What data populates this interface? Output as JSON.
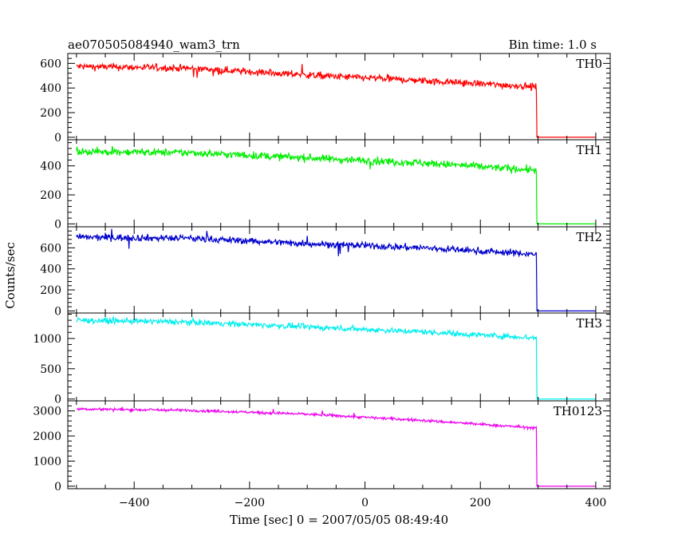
{
  "header": {
    "title": "ae070505084940_wam3_trn",
    "bin_time": "Bin time: 1.0 s"
  },
  "chart_data": {
    "type": "line",
    "xlabel": "Time [sec] 0 = 2007/05/05 08:49:40",
    "ylabel": "Counts/sec",
    "xlim": [
      -515,
      425
    ],
    "x_ticks": [
      -400,
      -200,
      0,
      200,
      400
    ],
    "x_tick_labels": [
      "−400",
      "−200",
      "0",
      "200",
      "400"
    ],
    "x_data_range": [
      -500,
      400
    ],
    "drop_time": 297,
    "bin_time_s": 1.0,
    "grid": false,
    "panels": [
      {
        "name": "TH0",
        "color": "#ff0000",
        "ylim": [
          -20,
          680
        ],
        "y_ticks": [
          0,
          200,
          400,
          600
        ],
        "y_tick_labels": [
          "0",
          "200",
          "400",
          "600"
        ],
        "trend": [
          [
            -500,
            575
          ],
          [
            -300,
            560
          ],
          [
            -100,
            505
          ],
          [
            100,
            460
          ],
          [
            296,
            410
          ]
        ],
        "noise": 28,
        "after_drop": 0
      },
      {
        "name": "TH1",
        "color": "#00ee00",
        "ylim": [
          -20,
          580
        ],
        "y_ticks": [
          0,
          200,
          400
        ],
        "y_tick_labels": [
          "0",
          "200",
          "400"
        ],
        "trend": [
          [
            -500,
            500
          ],
          [
            -300,
            490
          ],
          [
            -100,
            455
          ],
          [
            100,
            420
          ],
          [
            296,
            370
          ]
        ],
        "noise": 26,
        "after_drop": 0
      },
      {
        "name": "TH2",
        "color": "#0000cc",
        "ylim": [
          -20,
          800
        ],
        "y_ticks": [
          0,
          200,
          400,
          600
        ],
        "y_tick_labels": [
          "0",
          "200",
          "400",
          "600"
        ],
        "trend": [
          [
            -500,
            700
          ],
          [
            -300,
            690
          ],
          [
            -100,
            640
          ],
          [
            100,
            600
          ],
          [
            296,
            540
          ]
        ],
        "noise": 32,
        "after_drop": 0
      },
      {
        "name": "TH3",
        "color": "#00eeee",
        "ylim": [
          -30,
          1420
        ],
        "y_ticks": [
          0,
          500,
          1000
        ],
        "y_tick_labels": [
          "0",
          "500",
          "1000"
        ],
        "trend": [
          [
            -500,
            1300
          ],
          [
            -300,
            1270
          ],
          [
            -100,
            1190
          ],
          [
            100,
            1110
          ],
          [
            296,
            1010
          ]
        ],
        "noise": 45,
        "after_drop": 0
      },
      {
        "name": "TH0123",
        "color": "#ee00ee",
        "ylim": [
          -100,
          3400
        ],
        "y_ticks": [
          0,
          1000,
          2000,
          3000
        ],
        "y_tick_labels": [
          "0",
          "1000",
          "2000",
          "3000"
        ],
        "trend": [
          [
            -500,
            3080
          ],
          [
            -300,
            3020
          ],
          [
            -100,
            2870
          ],
          [
            100,
            2620
          ],
          [
            296,
            2320
          ]
        ],
        "noise": 55,
        "after_drop": 0
      }
    ]
  }
}
